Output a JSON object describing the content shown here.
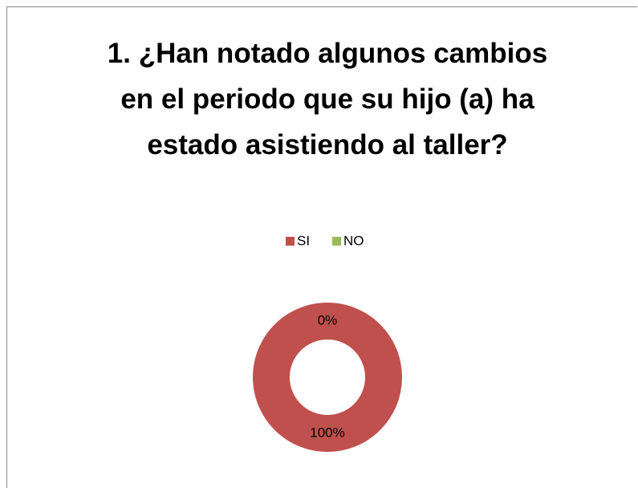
{
  "chart_data": {
    "type": "donut",
    "title": "1. ¿Han notado algunos cambios en el periodo que su hijo (a) ha estado asistiendo al taller?",
    "categories": [
      "SI",
      "NO"
    ],
    "values": [
      100,
      0
    ],
    "value_labels": [
      "100%",
      "0%"
    ],
    "colors": [
      "#c0504d",
      "#9bbb59"
    ],
    "legend": "top"
  }
}
